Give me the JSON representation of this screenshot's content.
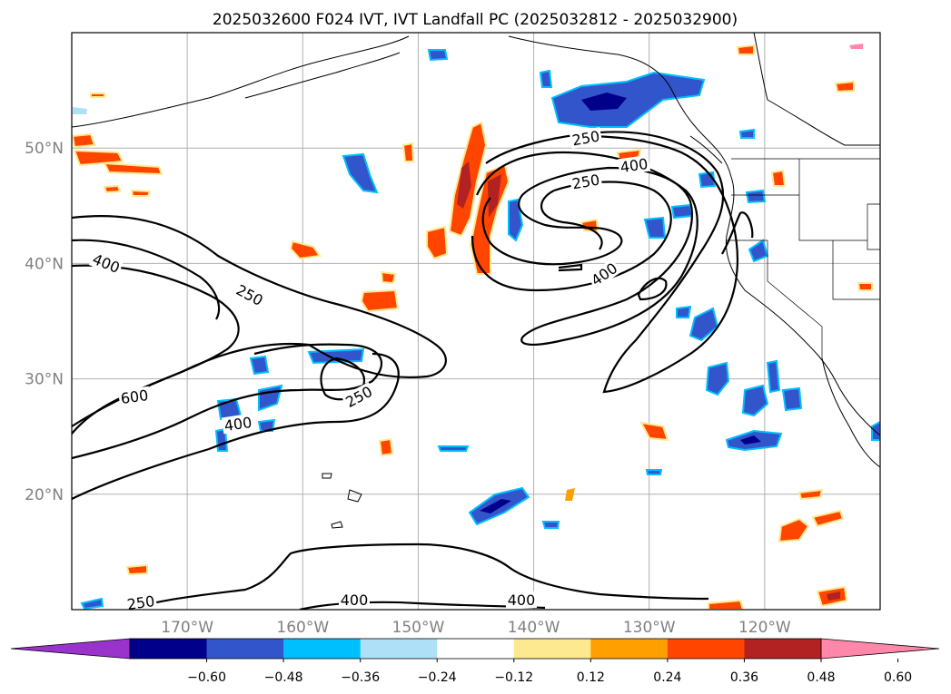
{
  "title": "2025032600 F024 IVT, IVT Landfall PC (2025032812 - 2025032900)",
  "map": {
    "lon_range": [
      -180,
      -110
    ],
    "lat_range": [
      10,
      60
    ],
    "lat_ticks": [
      {
        "value": 20,
        "label": "20°N"
      },
      {
        "value": 30,
        "label": "30°N"
      },
      {
        "value": 40,
        "label": "40°N"
      },
      {
        "value": 50,
        "label": "50°N"
      }
    ],
    "lon_ticks": [
      {
        "value": -170,
        "label": "170°W"
      },
      {
        "value": -160,
        "label": "160°W"
      },
      {
        "value": -150,
        "label": "150°W"
      },
      {
        "value": -140,
        "label": "140°W"
      },
      {
        "value": -130,
        "label": "130°W"
      },
      {
        "value": -120,
        "label": "120°W"
      }
    ],
    "gridlines": true,
    "contour_labels": [
      "250",
      "400",
      "250",
      "400",
      "250",
      "400",
      "600",
      "250",
      "400",
      "250",
      "400",
      "400"
    ]
  },
  "colorbar": {
    "levels": [
      "−0.60",
      "−0.48",
      "−0.36",
      "−0.24",
      "−0.12",
      "0.12",
      "0.24",
      "0.36",
      "0.48",
      "0.60"
    ],
    "colors": [
      "#9933cc",
      "#00008b",
      "#3355cc",
      "#00bfff",
      "#aee0f8",
      "#ffffff",
      "#fde98f",
      "#ff9f00",
      "#ff4500",
      "#b22222",
      "#ff88aa"
    ],
    "extend": "both"
  }
}
